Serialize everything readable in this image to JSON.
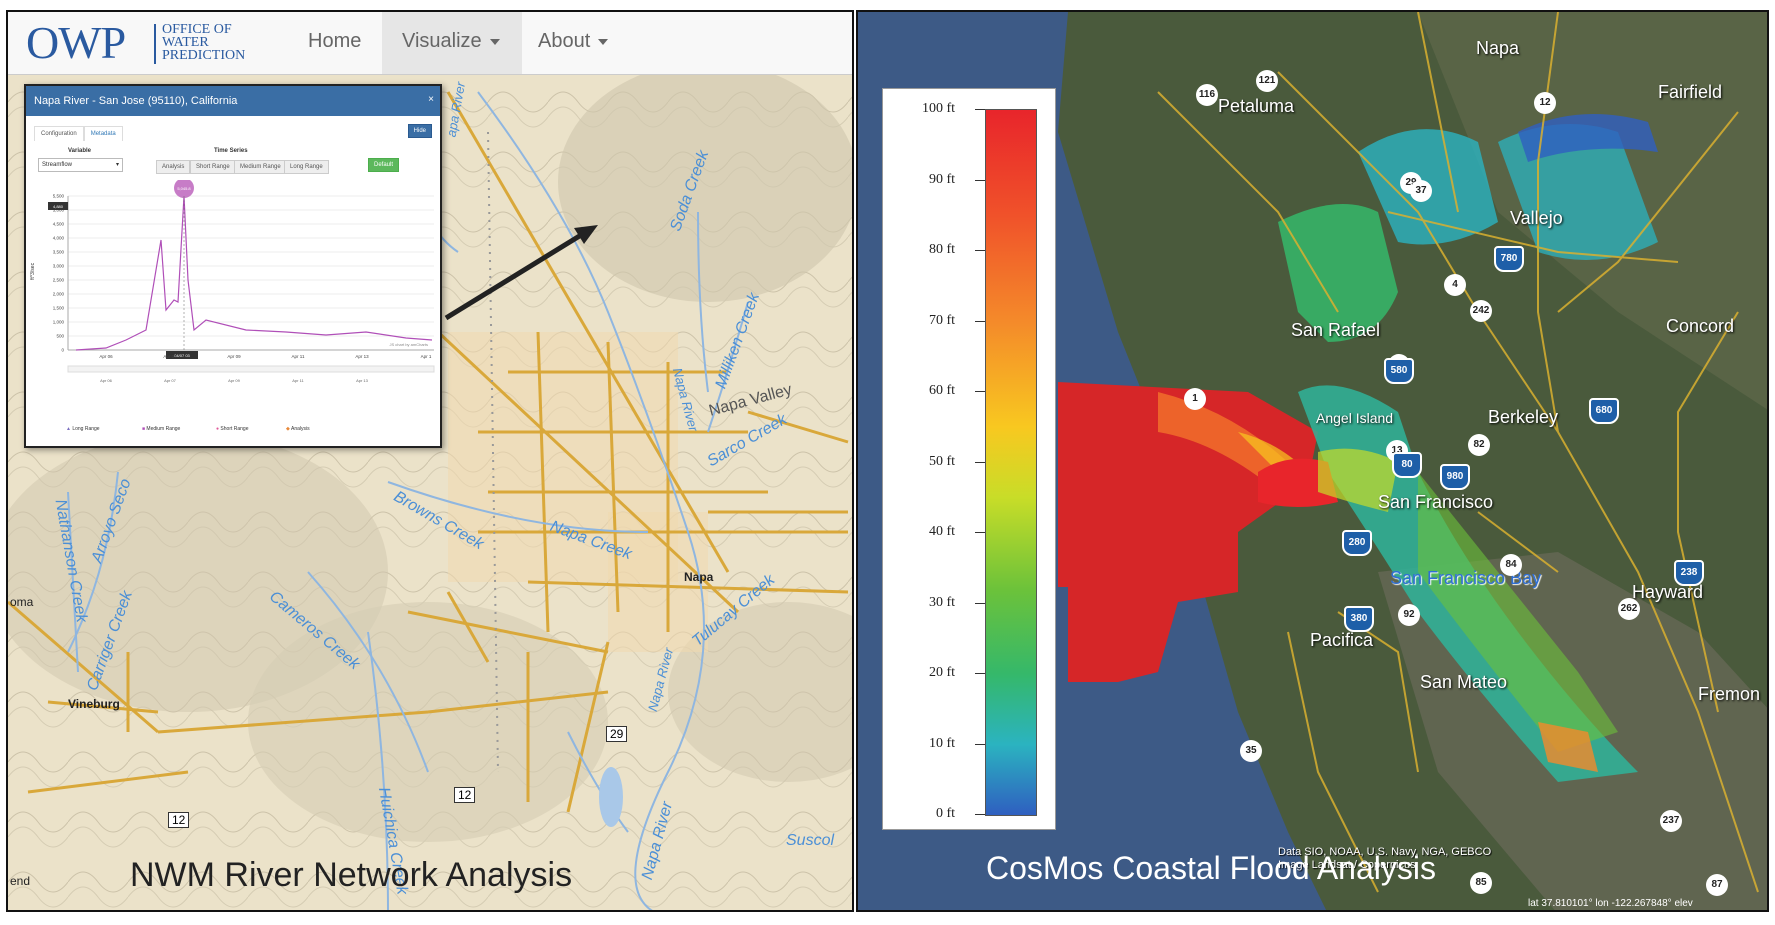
{
  "left_panel": {
    "logo": {
      "mark": "OWP",
      "line1": "OFFICE OF",
      "line2": "WATER",
      "line3": "PREDICTION"
    },
    "nav": [
      {
        "label": "Home"
      },
      {
        "label": "Visualize"
      },
      {
        "label": "About"
      }
    ],
    "caption": "NWM River Network Analysis",
    "popup": {
      "title": "Napa River - San Jose (95110), California",
      "tabs": [
        "Configuration",
        "Metadata"
      ],
      "variable_label": "Variable",
      "variable_value": "Streamflow",
      "timeseries_label": "Time Series",
      "timeseries_buttons": [
        "Analysis",
        "Short Range",
        "Medium Range",
        "Long Range"
      ],
      "hide_label": "Hide",
      "default_label": "Default",
      "ylabel": "ft^3/sec",
      "peak_label": "5,045.8",
      "cursor_x_label": "04/07 03",
      "left_value_label": "4,880",
      "credit": "JS chart by amCharts",
      "legend": [
        "Long Range",
        "Medium Range",
        "Short Range",
        "Analysis"
      ],
      "chart_data": {
        "type": "line",
        "y_ticks": [
          "5,500",
          "5,000",
          "4,500",
          "4,000",
          "3,500",
          "3,000",
          "2,500",
          "2,000",
          "1,500",
          "1,000",
          "500",
          "0"
        ],
        "x_ticks_top": [
          "Apr 06",
          "Apr 07",
          "Apr 09",
          "Apr 11",
          "Apr 13",
          "Apr 1"
        ],
        "x_ticks_bottom": [
          "Apr 06",
          "Apr 07",
          "Apr 09",
          "Apr 11",
          "Apr 13"
        ],
        "ylim": [
          0,
          5500
        ]
      }
    },
    "places": [
      "Napa",
      "Vineburg",
      "Suscol",
      "oma",
      "end"
    ],
    "rivers": [
      "Soda Creek",
      "Milliken Creek",
      "Napa Valley",
      "Sarco Creek",
      "Browns Creek",
      "Napa Creek",
      "Napa River",
      "Tulucay Creek",
      "Cameros Creek",
      "Arroyo Seco",
      "Nathanson Creek",
      "Carriger Creek",
      "Huichica Creek",
      "Napa River",
      "Napa River",
      "apa River"
    ],
    "roads": [
      "29",
      "12",
      "12"
    ]
  },
  "right_panel": {
    "caption": "CosMos Coastal Flood Analysis",
    "colorbar": {
      "ticks": [
        "100 ft",
        "90 ft",
        "80 ft",
        "70 ft",
        "60 ft",
        "50 ft",
        "40 ft",
        "30 ft",
        "20 ft",
        "10 ft",
        "0 ft"
      ],
      "colors": [
        "#e8252b",
        "#f0522a",
        "#f48a2a",
        "#f8c820",
        "#c8dd28",
        "#6cc23a",
        "#35b86a",
        "#2bb3c0",
        "#2f5fc0"
      ]
    },
    "places": [
      "Napa",
      "Petaluma",
      "Fairfield",
      "Vallejo",
      "San Rafael",
      "Concord",
      "Angel Island",
      "Berkeley",
      "San Francisco",
      "San Francisco Bay",
      "Hayward",
      "Pacifica",
      "San Mateo",
      "Fremon"
    ],
    "shields": [
      "116",
      "121",
      "12",
      "29",
      "37",
      "4",
      "242",
      "24",
      "1",
      "13",
      "82",
      "92",
      "84",
      "262",
      "35",
      "237",
      "85",
      "87"
    ],
    "interstates": [
      "780",
      "580",
      "680",
      "80",
      "980",
      "280",
      "238",
      "380"
    ],
    "attribution_line1": "Data SIO, NOAA, U.S. Navy, NGA, GEBCO",
    "attribution_line2": "Image Landsat / Copernicus",
    "coords": "lat  37.810101° lon -122.267848° elev"
  }
}
